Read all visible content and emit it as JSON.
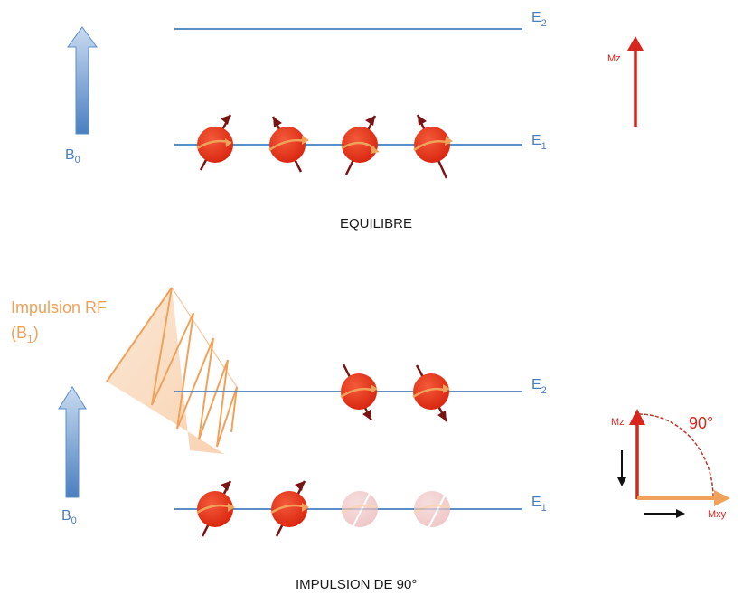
{
  "equilibrium": {
    "level_top": "E",
    "level_top_sub": "2",
    "level_bottom": "E",
    "level_bottom_sub": "1",
    "field": "B",
    "field_sub": "0",
    "magnetization": "Mz",
    "caption": "EQUILIBRE"
  },
  "pulse": {
    "rf_label": "Impulsion RF",
    "rf_field_open": "(B",
    "rf_field_sub": "1",
    "rf_field_close": ")",
    "level_top": "E",
    "level_top_sub": "2",
    "level_bottom": "E",
    "level_bottom_sub": "1",
    "field": "B",
    "field_sub": "0",
    "mz": "Mz",
    "mxy": "Mxy",
    "angle": "90°",
    "caption": "IMPULSION DE 90°"
  },
  "colors": {
    "level_line": "#5b8ec9",
    "spin": "#e23a1e",
    "spin_faded": "#f1c3c3",
    "rf_wave": "#f0a25a",
    "magnetization": "#d9261c"
  }
}
